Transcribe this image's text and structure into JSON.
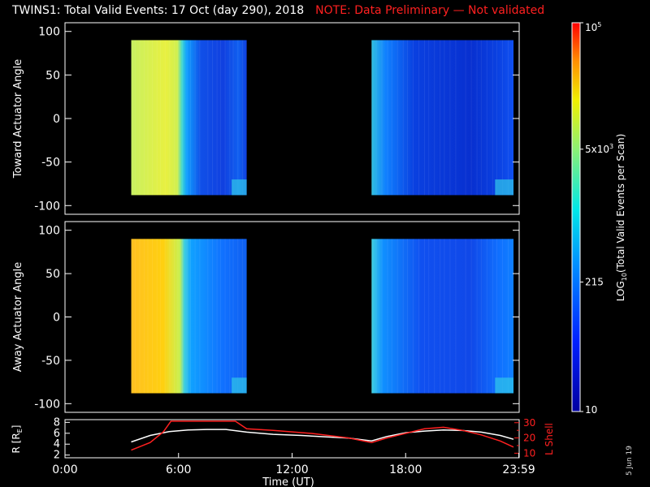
{
  "title": {
    "main": "TWINS1: Total Valid Events: 17 Oct (day 290), 2018",
    "note": "NOTE: Data Preliminary — Not validated"
  },
  "stamp": "5 Jun 19",
  "colors": {
    "background": "#000000",
    "frame": "#ffffff",
    "note_text": "#ff2020",
    "r_line": "#ffffff",
    "lshell_line": "#ff2020"
  },
  "chart_data": [
    {
      "type": "heatmap",
      "ylabel": "Toward Actuator Angle",
      "ylim": [
        -110,
        110
      ],
      "yticks": [
        100,
        50,
        0,
        -50,
        -100
      ],
      "xlim_hours": [
        0,
        24
      ],
      "data_blocks_hours": [
        [
          3.5,
          9.6
        ],
        [
          16.2,
          23.7
        ]
      ],
      "angle_range": [
        -88,
        90
      ]
    },
    {
      "type": "heatmap",
      "ylabel": "Away Actuator Angle",
      "ylim": [
        -110,
        110
      ],
      "yticks": [
        100,
        50,
        0,
        -50,
        -100
      ],
      "xlim_hours": [
        0,
        24
      ],
      "data_blocks_hours": [
        [
          3.5,
          9.6
        ],
        [
          16.2,
          23.7
        ]
      ],
      "angle_range": [
        -88,
        90
      ]
    },
    {
      "type": "line",
      "xlabel": "Time (UT)",
      "xticks": [
        "0:00",
        "6:00",
        "12:00",
        "18:00",
        "23:59"
      ],
      "xtick_hours": [
        0,
        6,
        12,
        18,
        23.98
      ],
      "ylabel_left": "R [R",
      "ylabel_left_sub": "E",
      "ylabel_left_close": "]",
      "ylim_left": [
        1.5,
        8.5
      ],
      "yticks_left": [
        8,
        6,
        4,
        2
      ],
      "ylabel_right": "L Shell",
      "ylim_right": [
        7,
        32
      ],
      "yticks_right": [
        30,
        20,
        10
      ],
      "yticks_right_minor": [
        25,
        15
      ],
      "series": [
        {
          "axis": "left",
          "x": [
            3.5,
            4.5,
            5.5,
            6.5,
            7.5,
            8.5,
            9.6,
            11.0,
            12.5,
            14.0,
            15.0,
            16.2,
            17.0,
            18.0,
            19.0,
            20.0,
            21.0,
            22.0,
            23.0,
            23.7
          ],
          "y": [
            4.4,
            5.6,
            6.3,
            6.6,
            6.7,
            6.7,
            6.2,
            5.8,
            5.6,
            5.3,
            5.1,
            4.6,
            5.4,
            6.1,
            6.4,
            6.6,
            6.5,
            6.2,
            5.6,
            4.9
          ]
        },
        {
          "axis": "right",
          "x": [
            3.5,
            4.5,
            5.2,
            5.6,
            9.0,
            9.6,
            11.0,
            13.0,
            15.0,
            16.2,
            17.0,
            18.0,
            19.0,
            20.0,
            21.0,
            22.0,
            23.0,
            23.7
          ],
          "y": [
            12,
            17,
            24,
            31,
            31,
            26,
            25,
            23,
            20,
            17,
            20,
            23,
            26,
            27,
            25,
            22,
            18,
            14
          ]
        }
      ]
    }
  ],
  "colorbar": {
    "type": "log",
    "range": [
      10,
      100000
    ],
    "ticks": [
      {
        "value": 100000,
        "base": "10",
        "exp": "5"
      },
      {
        "value": 5000,
        "base": "5x10",
        "exp": "3"
      },
      {
        "value": 215,
        "base": "215",
        "exp": ""
      },
      {
        "value": 10,
        "base": "10",
        "exp": ""
      }
    ],
    "label": "LOG",
    "label_sub": "10",
    "label_rest": "(Total Valid Events per Scan)"
  }
}
